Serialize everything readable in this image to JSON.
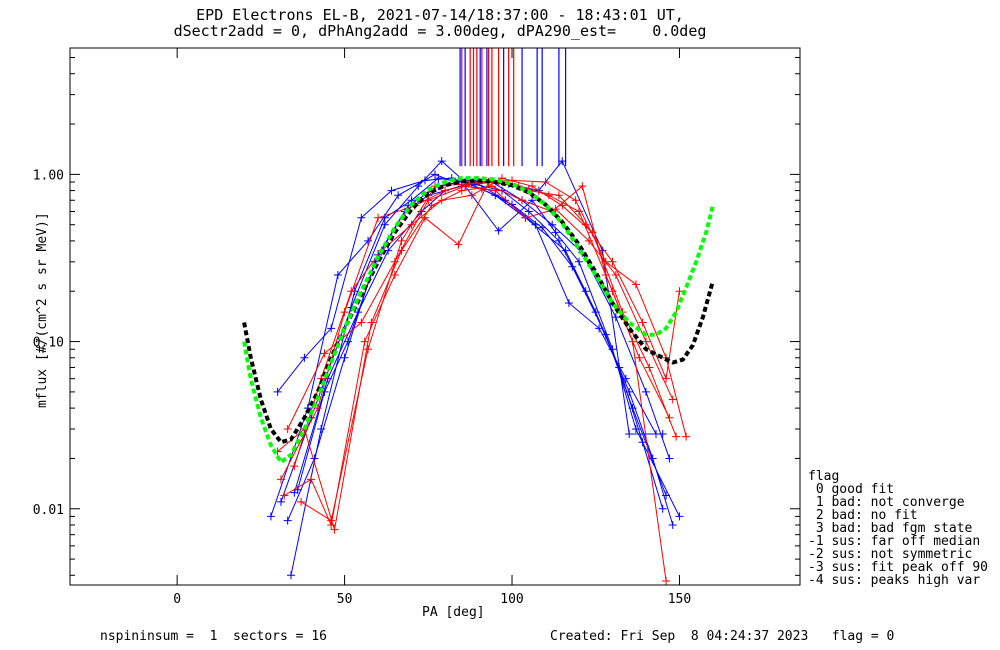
{
  "title_line1": "EPD Electrons EL-B, 2021-07-14/18:37:00 - 18:43:01 UT,",
  "title_line2": "dSectr2add = 0, dPhAng2add = 3.00deg, dPA290_est=    0.0deg",
  "footer_left": "nspininsum =  1  sectors = 16",
  "footer_right": "Created: Fri Sep  8 04:24:37 2023   flag = 0",
  "legend": {
    "title": "flag",
    "items": [
      " 0 good fit",
      " 1 bad: not converge",
      " 2 bad: no fit",
      " 3 bad: bad fgm state",
      "-1 sus: far off median",
      "-2 sus: not symmetric",
      "-3 sus: fit peak off 90",
      "-4 sus: peaks high var"
    ]
  },
  "colors": {
    "blue": "#0000ff",
    "red": "#ff0000",
    "black": "#000000",
    "green": "#00ff00"
  },
  "chart_data": {
    "type": "line",
    "xlabel": "PA [deg]",
    "ylabel": "mflux [#/(cm^2 s sr MeV)]",
    "xlim": [
      -32,
      186
    ],
    "ylim": [
      0.0035,
      5.7
    ],
    "yscale": "log",
    "xticks": [
      0,
      50,
      100,
      150
    ],
    "yticks": [
      {
        "value": 0.01,
        "label": "0.01"
      },
      {
        "value": 0.1,
        "label": "0.10"
      },
      {
        "value": 1.0,
        "label": "1.00"
      }
    ],
    "fits": [
      {
        "color": "black",
        "x": [
          20,
          22,
          25,
          28,
          31,
          34,
          38,
          42,
          46,
          50,
          55,
          60,
          65,
          70,
          75,
          80,
          85,
          90,
          95,
          100,
          105,
          110,
          115,
          120,
          125,
          130,
          135,
          140,
          145,
          148,
          151,
          154,
          157,
          160
        ],
        "y": [
          0.13,
          0.08,
          0.045,
          0.03,
          0.025,
          0.026,
          0.035,
          0.05,
          0.08,
          0.12,
          0.19,
          0.3,
          0.45,
          0.62,
          0.77,
          0.86,
          0.91,
          0.92,
          0.9,
          0.86,
          0.78,
          0.66,
          0.52,
          0.38,
          0.26,
          0.17,
          0.12,
          0.09,
          0.08,
          0.075,
          0.078,
          0.095,
          0.14,
          0.23
        ]
      },
      {
        "color": "green",
        "x": [
          20,
          22,
          25,
          28,
          31,
          34,
          38,
          42,
          46,
          50,
          55,
          60,
          65,
          70,
          75,
          80,
          85,
          90,
          95,
          100,
          105,
          110,
          115,
          120,
          125,
          130,
          135,
          140,
          143,
          146,
          149,
          152,
          155,
          158,
          160
        ],
        "y": [
          0.1,
          0.06,
          0.035,
          0.024,
          0.019,
          0.021,
          0.03,
          0.046,
          0.075,
          0.12,
          0.2,
          0.32,
          0.48,
          0.66,
          0.81,
          0.9,
          0.95,
          0.95,
          0.93,
          0.88,
          0.79,
          0.66,
          0.51,
          0.36,
          0.25,
          0.17,
          0.13,
          0.11,
          0.11,
          0.12,
          0.15,
          0.21,
          0.3,
          0.45,
          0.65
        ]
      }
    ],
    "series": [
      {
        "color": "blue",
        "x": [
          31,
          40,
          52,
          62,
          72,
          79,
          86,
          95,
          104,
          116,
          125,
          135,
          142,
          148
        ],
        "y": [
          0.011,
          0.035,
          0.16,
          0.5,
          0.85,
          1.2,
          0.9,
          0.75,
          0.55,
          0.35,
          0.15,
          0.05,
          0.02,
          0.008
        ]
      },
      {
        "color": "blue",
        "x": [
          34,
          43,
          53,
          62,
          70,
          78,
          88,
          97,
          105,
          114,
          122,
          132,
          139,
          145
        ],
        "y": [
          0.004,
          0.03,
          0.2,
          0.55,
          0.7,
          0.95,
          0.88,
          0.8,
          0.6,
          0.4,
          0.2,
          0.07,
          0.025,
          0.01
        ]
      },
      {
        "color": "blue",
        "x": [
          28,
          39,
          48,
          57,
          66,
          77,
          86,
          96,
          106,
          113,
          120,
          130,
          137,
          150
        ],
        "y": [
          0.009,
          0.04,
          0.25,
          0.4,
          0.75,
          1.0,
          0.85,
          0.46,
          0.7,
          0.45,
          0.3,
          0.09,
          0.03,
          0.009
        ]
      },
      {
        "color": "blue",
        "x": [
          35,
          45,
          54,
          63,
          73,
          80,
          89,
          98,
          107,
          117,
          126,
          134,
          143
        ],
        "y": [
          0.0125,
          0.06,
          0.15,
          0.35,
          0.6,
          0.8,
          0.9,
          0.7,
          0.5,
          0.17,
          0.12,
          0.06,
          0.028
        ]
      },
      {
        "color": "blue",
        "x": [
          30,
          38,
          46,
          55,
          64,
          74,
          82,
          91,
          100,
          109,
          118,
          128,
          136,
          146
        ],
        "y": [
          0.05,
          0.08,
          0.12,
          0.55,
          0.8,
          0.92,
          0.95,
          0.82,
          0.66,
          0.48,
          0.28,
          0.11,
          0.04,
          0.012
        ]
      },
      {
        "color": "blue",
        "x": [
          33,
          41,
          50,
          59,
          68,
          75,
          85,
          94,
          103,
          112,
          121,
          131,
          140,
          147
        ],
        "y": [
          0.0085,
          0.02,
          0.08,
          0.3,
          0.6,
          0.75,
          0.85,
          0.9,
          0.7,
          0.5,
          0.34,
          0.14,
          0.05,
          0.02
        ]
      },
      {
        "color": "blue",
        "x": [
          36,
          44,
          51,
          60,
          69,
          78,
          87,
          99,
          108,
          115,
          127,
          135,
          145
        ],
        "y": [
          0.013,
          0.05,
          0.1,
          0.33,
          0.65,
          0.85,
          0.92,
          0.88,
          0.8,
          1.2,
          0.35,
          0.028,
          0.028
        ]
      },
      {
        "color": "red",
        "x": [
          32,
          40,
          46,
          56,
          65,
          74,
          84,
          93,
          102,
          111,
          120,
          130,
          138,
          147
        ],
        "y": [
          0.012,
          0.015,
          0.008,
          0.1,
          0.25,
          0.55,
          0.38,
          0.9,
          0.85,
          0.75,
          0.6,
          0.2,
          0.08,
          0.035
        ]
      },
      {
        "color": "red",
        "x": [
          30,
          38,
          47,
          58,
          67,
          76,
          85,
          94,
          103,
          112,
          121,
          128,
          136,
          146
        ],
        "y": [
          0.022,
          0.03,
          0.0075,
          0.13,
          0.35,
          0.65,
          0.8,
          0.85,
          0.7,
          0.6,
          0.85,
          0.25,
          0.1,
          0.0037
        ]
      },
      {
        "color": "red",
        "x": [
          35,
          43,
          52,
          61,
          70,
          79,
          88,
          97,
          106,
          115,
          124,
          133,
          141,
          149
        ],
        "y": [
          0.018,
          0.06,
          0.2,
          0.35,
          0.5,
          0.7,
          0.75,
          0.95,
          0.85,
          0.65,
          0.45,
          0.15,
          0.07,
          0.027
        ]
      },
      {
        "color": "red",
        "x": [
          31,
          42,
          50,
          60,
          71,
          80,
          90,
          100,
          110,
          119,
          128,
          137,
          146,
          152
        ],
        "y": [
          0.015,
          0.04,
          0.15,
          0.55,
          0.65,
          0.8,
          0.9,
          0.92,
          0.9,
          0.7,
          0.3,
          0.22,
          0.08,
          0.027
        ]
      },
      {
        "color": "red",
        "x": [
          33,
          44,
          55,
          65,
          75,
          86,
          95,
          104,
          113,
          123,
          131,
          140,
          148
        ],
        "y": [
          0.03,
          0.085,
          0.13,
          0.3,
          0.7,
          0.85,
          0.8,
          0.55,
          0.62,
          0.4,
          0.25,
          0.1,
          0.045
        ]
      },
      {
        "color": "red",
        "x": [
          37,
          46,
          57,
          67,
          77,
          87,
          96,
          105,
          114,
          122,
          130,
          139,
          146,
          150
        ],
        "y": [
          0.011,
          0.0085,
          0.09,
          0.4,
          0.85,
          0.88,
          0.9,
          0.8,
          0.75,
          0.5,
          0.3,
          0.13,
          0.06,
          0.2
        ]
      }
    ],
    "vertical_lines": [
      {
        "color": "blue",
        "x": [
          84.5,
          86,
          90.5,
          92.5,
          97.5,
          103,
          107.5,
          109,
          114,
          116
        ]
      },
      {
        "color": "red",
        "x": [
          85,
          87.5,
          88.5,
          89.5,
          91,
          93,
          94,
          96,
          99,
          100.5
        ]
      }
    ]
  }
}
